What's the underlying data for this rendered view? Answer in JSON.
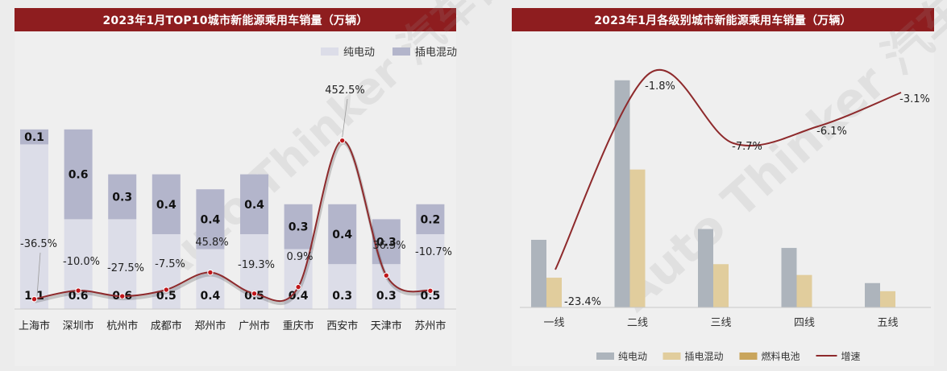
{
  "left": {
    "title": "2023年1月TOP10城市新能源乘用车销量（万辆）",
    "watermark": "Auto Thinker 汽车智库平台",
    "chart_data": {
      "type": "bar",
      "stacked": true,
      "categories": [
        "上海市",
        "深圳市",
        "杭州市",
        "成都市",
        "郑州市",
        "广州市",
        "重庆市",
        "西安市",
        "天津市",
        "苏州市"
      ],
      "series": [
        {
          "name": "纯电动",
          "values": [
            1.1,
            0.6,
            0.6,
            0.5,
            0.4,
            0.5,
            0.4,
            0.3,
            0.3,
            0.5
          ],
          "color": "#dcdde8"
        },
        {
          "name": "插电混动",
          "values": [
            0.1,
            0.6,
            0.3,
            0.4,
            0.4,
            0.4,
            0.3,
            0.4,
            0.3,
            0.2
          ],
          "color": "#b3b5cb"
        }
      ],
      "growth": {
        "values": [
          -36.5,
          -10.0,
          -27.5,
          -7.5,
          45.8,
          -19.3,
          0.9,
          452.5,
          36.5,
          -10.7
        ],
        "labels": [
          "-36.5%",
          "-10.0%",
          "-27.5%",
          "-7.5%",
          "45.8%",
          "-19.3%",
          "0.9%",
          "452.5%",
          "36.5%",
          "-10.7%"
        ],
        "color": "#8e2a2c"
      },
      "legend_position": "top-right"
    }
  },
  "right": {
    "title": "2023年1月各级别城市新能源乘用车销量（万辆）",
    "watermark": "Auto Thinker 汽车智库平台",
    "chart_data": {
      "type": "bar",
      "categories": [
        "一线",
        "二线",
        "三线",
        "四线",
        "五线"
      ],
      "series": [
        {
          "name": "纯电动",
          "values": [
            2.5,
            8.4,
            2.9,
            2.2,
            0.9
          ],
          "color": "#adb4bc"
        },
        {
          "name": "插电混动",
          "values": [
            1.1,
            5.1,
            1.6,
            1.2,
            0.6
          ],
          "color": "#e1cd9d"
        },
        {
          "name": "燃料电池",
          "values": [
            0,
            0,
            0,
            0,
            0
          ],
          "color": "#c9a55c"
        }
      ],
      "growth": {
        "name": "增速",
        "values": [
          -23.4,
          -1.8,
          -7.7,
          -6.1,
          -3.1
        ],
        "labels": [
          "-23.4%",
          "-1.8%",
          "-7.7%",
          "-6.1%",
          "-3.1%"
        ],
        "color": "#8e2a2c"
      },
      "legend_position": "bottom"
    }
  }
}
